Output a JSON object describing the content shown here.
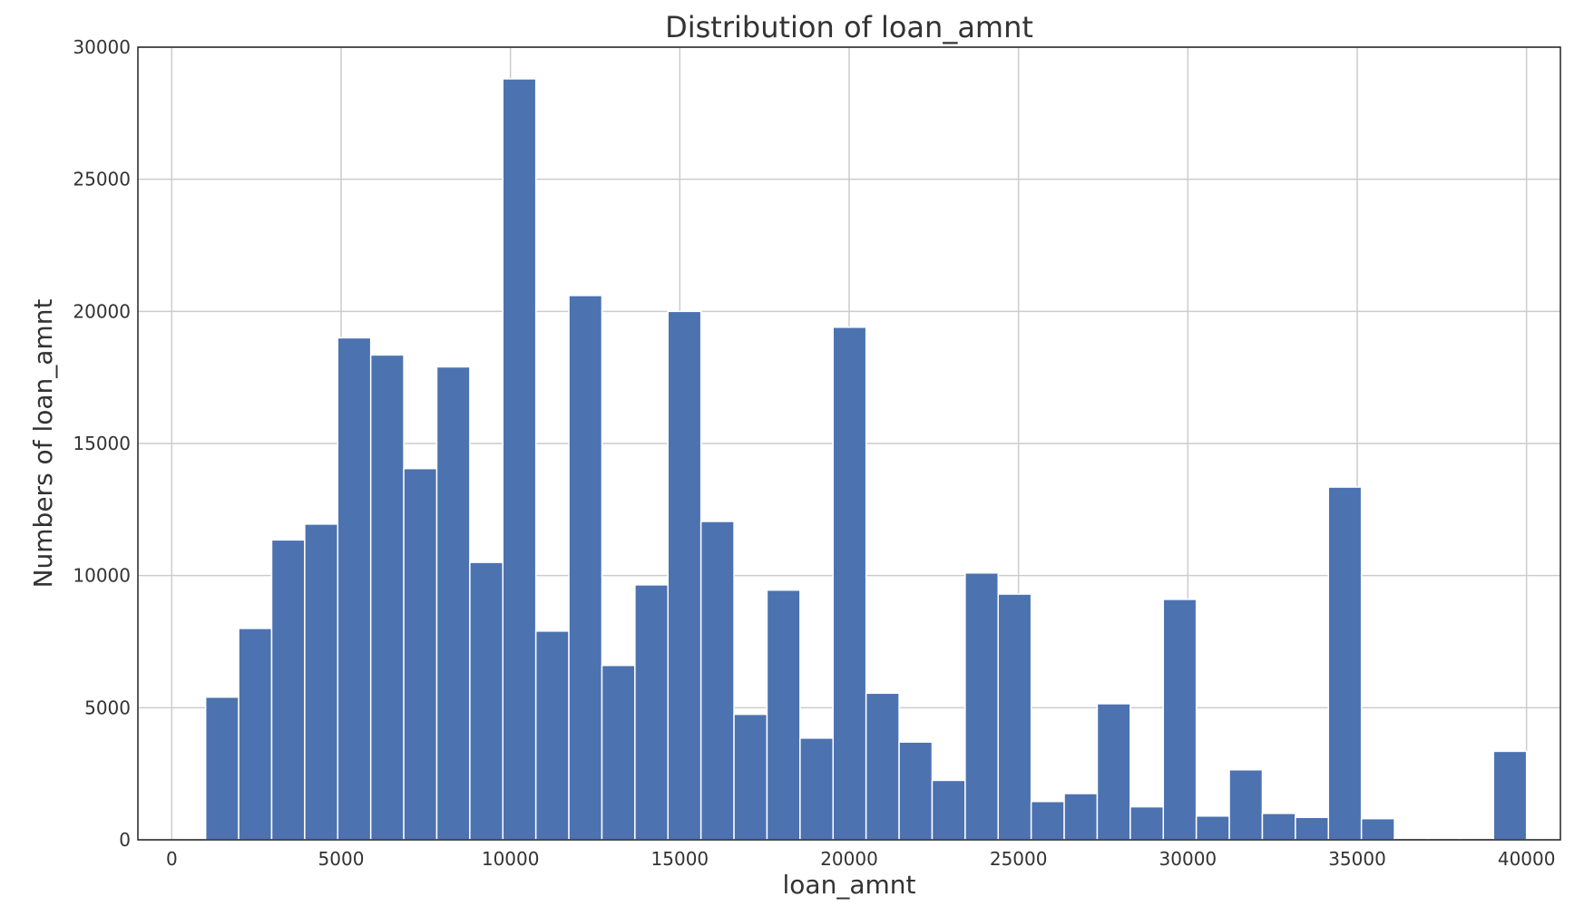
{
  "chart_data": {
    "type": "bar",
    "title": "Distribution of loan_amnt",
    "xlabel": "loan_amnt",
    "ylabel": "Numbers of loan_amnt",
    "xlim": [
      -1000,
      41000
    ],
    "ylim": [
      0,
      30000
    ],
    "xticks": [
      0,
      5000,
      10000,
      15000,
      20000,
      25000,
      30000,
      35000,
      40000
    ],
    "yticks": [
      0,
      5000,
      10000,
      15000,
      20000,
      25000,
      30000
    ],
    "grid": true,
    "bar_color": "#4c72b0",
    "bin_width": 975,
    "bin_starts": [
      1000,
      1975,
      2950,
      3925,
      4900,
      5875,
      6850,
      7825,
      8800,
      9775,
      10750,
      11725,
      12700,
      13675,
      14650,
      15625,
      16600,
      17575,
      18550,
      19525,
      20500,
      21475,
      22450,
      23425,
      24400,
      25375,
      26350,
      27325,
      28300,
      29275,
      30250,
      31225,
      32200,
      33175,
      34150,
      35125,
      36100,
      37075,
      38050,
      39025
    ],
    "values": [
      5400,
      8000,
      11350,
      11950,
      19000,
      18350,
      14050,
      17900,
      10500,
      28800,
      7900,
      20600,
      6600,
      9650,
      20000,
      12050,
      4750,
      9450,
      3850,
      19400,
      5550,
      3700,
      2250,
      10100,
      9300,
      1450,
      1750,
      5150,
      1250,
      9100,
      900,
      2650,
      1000,
      850,
      13350,
      800,
      60,
      60,
      60,
      3350
    ]
  }
}
